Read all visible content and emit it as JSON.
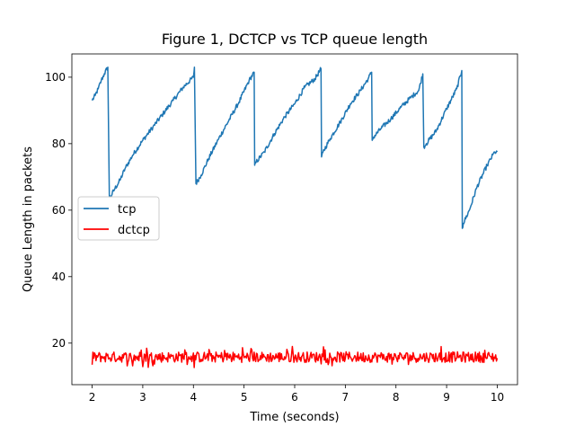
{
  "chart_data": {
    "type": "line",
    "title": "Figure 1, DCTCP vs TCP queue length",
    "xlabel": "Time (seconds)",
    "ylabel": "Queue Length in packets",
    "xlim": [
      1.6,
      10.4
    ],
    "ylim": [
      7.5,
      107
    ],
    "xticks": [
      2,
      3,
      4,
      5,
      6,
      7,
      8,
      9,
      10
    ],
    "yticks": [
      20,
      40,
      60,
      80,
      100
    ],
    "grid": false,
    "legend_placement": "center-left",
    "series": [
      {
        "name": "tcp",
        "color": "#1f77b4",
        "x": [
          2.0,
          2.06,
          2.12,
          2.18,
          2.24,
          2.31,
          2.34,
          2.36,
          2.45,
          2.55,
          2.65,
          2.8,
          3.0,
          3.2,
          3.4,
          3.6,
          3.8,
          4.0,
          4.02,
          4.05,
          4.15,
          4.3,
          4.5,
          4.7,
          4.9,
          5.1,
          5.2,
          5.21,
          5.24,
          5.4,
          5.6,
          5.8,
          6.0,
          6.2,
          6.4,
          6.52,
          6.53,
          6.56,
          6.7,
          6.9,
          7.1,
          7.3,
          7.45,
          7.52,
          7.53,
          7.56,
          7.7,
          7.9,
          8.1,
          8.3,
          8.45,
          8.53,
          8.55,
          8.6,
          8.8,
          9.0,
          9.2,
          9.3,
          9.31,
          9.33,
          9.45,
          9.6,
          9.8,
          9.95,
          10.0
        ],
        "values": [
          93,
          94.5,
          96.5,
          99,
          101,
          103,
          64,
          64,
          66.5,
          69,
          72.5,
          76.5,
          81,
          85,
          89,
          93,
          97,
          100,
          103,
          68,
          70.5,
          75.5,
          81.5,
          87,
          92.5,
          99,
          101.5,
          73.5,
          74.5,
          77.5,
          83,
          88,
          92,
          97,
          99.5,
          102.5,
          76,
          77.5,
          81.5,
          86.5,
          92,
          96,
          99.5,
          101.5,
          81,
          82,
          84.5,
          87.5,
          91,
          94,
          96,
          101,
          79,
          80,
          84,
          90.5,
          96.5,
          102,
          54.5,
          56,
          60,
          67,
          73.5,
          77.5,
          77.5
        ]
      },
      {
        "name": "dctcp",
        "color": "#ff0000",
        "x": [
          2.0,
          10.0
        ],
        "values": [
          13.5,
          15.5
        ],
        "mean": 15.8,
        "range": [
          12,
          19
        ]
      }
    ]
  }
}
